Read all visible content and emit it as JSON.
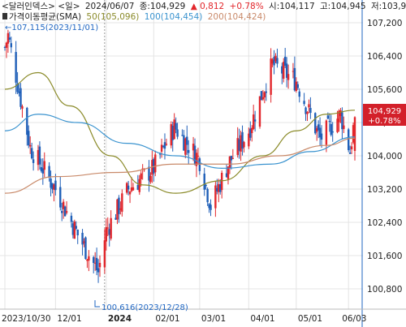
{
  "header": {
    "line1": {
      "symbol": "<달러인덱스>",
      "period": "<일>",
      "date": "2024/06/07",
      "close": "종:104,929",
      "change_arrow": "▲",
      "change": "0,812",
      "change_pct": "+0.78%",
      "open": "시:104,117",
      "high": "고:104,945",
      "low": "저:103,9"
    },
    "line2": {
      "indicator": "가격이동평균(SMA)",
      "ma50": "50(105,096)",
      "ma100": "100(104,454)",
      "ma200": "200(104,424)"
    }
  },
  "price_tag": {
    "price": "104,929",
    "pct": "+0.78%"
  },
  "annotations": {
    "high": "←107,115(2023/11/01)",
    "low": "100,616(2023/12/28)"
  },
  "colors": {
    "up": "#e2262b",
    "down": "#1f5fb8",
    "ma50": "#8b8b2a",
    "ma100": "#3a93cf",
    "ma200": "#c98a6a",
    "price_tag": "#d3202a",
    "header_up": "#e2262b",
    "header_blue": "#1f66c2"
  },
  "chart_data": {
    "type": "candlestick",
    "title": "달러인덱스 일봉",
    "x_tick_labels": [
      "2023/10/30",
      "12/01",
      "2024",
      "02/01",
      "03/01",
      "04/01",
      "05/01",
      "06/03"
    ],
    "y_tick_labels": [
      "107,200",
      "106,400",
      "105,600",
      "104,800",
      "104,000",
      "103,200",
      "102,400",
      "101,600",
      "100,800"
    ],
    "ylim": [
      100.4,
      107.6
    ],
    "grid": true,
    "moving_averages": [
      {
        "name": "50",
        "last": 105.096
      },
      {
        "name": "100",
        "last": 104.454
      },
      {
        "name": "200",
        "last": 104.424
      }
    ],
    "approx_close_series": [
      {
        "date": "2023-10-30",
        "close": 106.6
      },
      {
        "date": "2023-11-01",
        "close": 106.9
      },
      {
        "date": "2023-11-15",
        "close": 104.2
      },
      {
        "date": "2023-12-01",
        "close": 103.2
      },
      {
        "date": "2023-12-15",
        "close": 102.1
      },
      {
        "date": "2023-12-28",
        "close": 101.2
      },
      {
        "date": "2024-01-02",
        "close": 102.2
      },
      {
        "date": "2024-01-16",
        "close": 103.2
      },
      {
        "date": "2024-02-01",
        "close": 103.7
      },
      {
        "date": "2024-02-14",
        "close": 104.7
      },
      {
        "date": "2024-03-01",
        "close": 103.9
      },
      {
        "date": "2024-03-08",
        "close": 102.8
      },
      {
        "date": "2024-03-19",
        "close": 103.8
      },
      {
        "date": "2024-04-01",
        "close": 104.6
      },
      {
        "date": "2024-04-16",
        "close": 106.2
      },
      {
        "date": "2024-05-01",
        "close": 105.8
      },
      {
        "date": "2024-05-16",
        "close": 104.4
      },
      {
        "date": "2024-05-29",
        "close": 105.0
      },
      {
        "date": "2024-06-04",
        "close": 104.1
      },
      {
        "date": "2024-06-07",
        "close": 104.929
      }
    ],
    "annotated_high": {
      "value": 107.115,
      "date": "2023-11-01"
    },
    "annotated_low": {
      "value": 100.616,
      "date": "2023-12-28"
    },
    "last": {
      "date": "2024-06-07",
      "close": 104.929,
      "change": 0.812,
      "change_pct": 0.78,
      "open": 104.117,
      "high": 104.945
    }
  }
}
